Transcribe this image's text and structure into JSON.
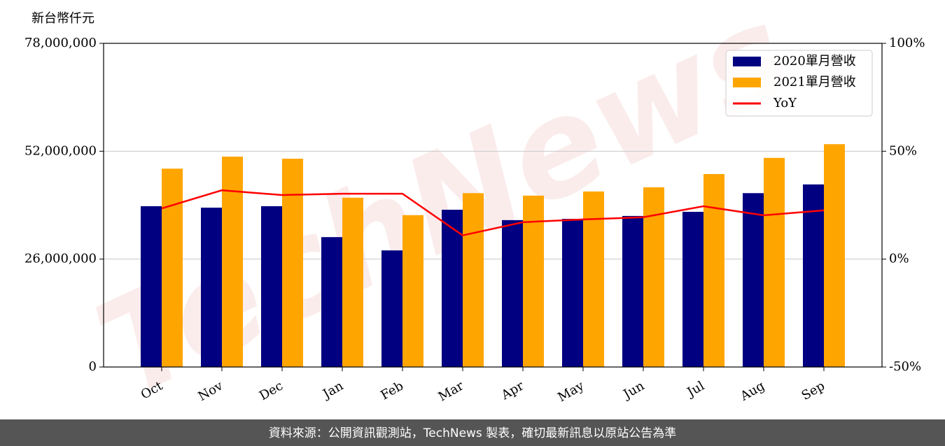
{
  "chart_data": {
    "type": "bar-line",
    "ylabel": "新台幣仟元",
    "watermark": "TechNews",
    "source": "資料來源：公開資訊觀測站，TechNews 製表，確切最新訊息以原站公告為準",
    "categories": [
      "Oct",
      "Nov",
      "Dec",
      "Jan",
      "Feb",
      "Mar",
      "Apr",
      "May",
      "Jun",
      "Jul",
      "Aug",
      "Sep"
    ],
    "series": [
      {
        "name": "2020單月營收",
        "type": "bar",
        "color": "#000080",
        "values": [
          38750000,
          38400000,
          38750000,
          31300000,
          28100000,
          37900000,
          35400000,
          35700000,
          36400000,
          37400000,
          41900000,
          44000000
        ]
      },
      {
        "name": "2021單月營收",
        "type": "bar",
        "color": "#ffa500",
        "values": [
          47800000,
          50700000,
          50200000,
          40800000,
          36600000,
          41900000,
          41300000,
          42300000,
          43300000,
          46500000,
          50400000,
          53700000
        ]
      },
      {
        "name": "YoY",
        "type": "line",
        "axis": "y2",
        "color": "#ff0000",
        "values": [
          23.5,
          31.9,
          29.7,
          30.3,
          30.3,
          11.0,
          17.1,
          18.4,
          19.4,
          24.5,
          20.3,
          22.6
        ]
      }
    ],
    "ylim": [
      0,
      78000000
    ],
    "yticks": [
      0,
      {
        "value": 26000000,
        "label": "26,000,000"
      },
      {
        "value": 52000000,
        "label": "52,000,000"
      },
      {
        "value": 78000000,
        "label": "78,000,000"
      }
    ],
    "y2lim": [
      -50,
      100
    ],
    "y2ticks": [
      {
        "value": -50,
        "label": "-50%"
      },
      {
        "value": 0,
        "label": "0%"
      },
      {
        "value": 50,
        "label": "50%"
      },
      {
        "value": 100,
        "label": "100%"
      }
    ],
    "grid": true,
    "legend": "upper right"
  }
}
